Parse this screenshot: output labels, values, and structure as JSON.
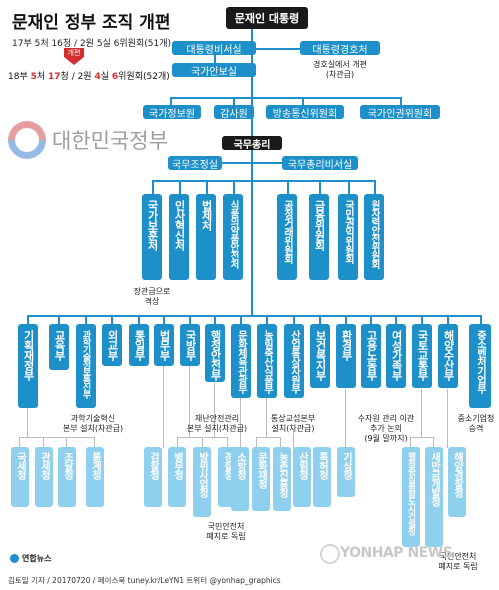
{
  "title": "문재인 정부 조직 개편",
  "before": "17부 5처 16청 / 2원 5실 6위원회(51개)",
  "reform_label": "개편",
  "after": {
    "p1": "18부 ",
    "n1": "5",
    "p2": "처 ",
    "n2": "17",
    "p3": "청 / 2원 ",
    "n3": "4",
    "p4": "실 ",
    "n4": "6",
    "p5": "위원회(52개)"
  },
  "logo_text": "대한민국정부",
  "president": "문재인 대통령",
  "presidential_left": [
    "대통령비서실",
    "국가안보실"
  ],
  "security_service": "대통령경호처",
  "security_note": [
    "경호실에서 개편",
    "(차관급)"
  ],
  "independent": [
    "국가정보원",
    "감사원",
    "방송통신위원회",
    "국가인권위원회"
  ],
  "pm": "국무총리",
  "pm_offices": [
    "국무조정실",
    "국무총리비서실"
  ],
  "pm_agencies": [
    "국가보훈처",
    "인사혁신처",
    "법제처",
    "식품의약품안전처",
    "공정거래위원회",
    "금융위원회",
    "국민권익위원회",
    "원자력안전위원회"
  ],
  "veterans_note": [
    "장관급으로",
    "격상"
  ],
  "ministries": [
    "기획재정부",
    "교육부",
    "과학기술정보통신부",
    "외교부",
    "통일부",
    "법무부",
    "국방부",
    "행정안전부",
    "문화체육관광부",
    "농림축산식품부",
    "산업통상자원부",
    "보건복지부",
    "환경부",
    "고용노동부",
    "여성가족부",
    "국토교통부",
    "해양수산부",
    "중소벤처기업부"
  ],
  "notes": {
    "science": [
      "과학기술혁신",
      "본부 설치(차관급)"
    ],
    "safety": [
      "재난안전관리",
      "본부 설치(차관급)"
    ],
    "trade": [
      "통상교섭본부",
      "설치(차관급)"
    ],
    "water": [
      "수자원 관리 이관",
      "추가 논의",
      "(9월 말까지)"
    ],
    "sme": [
      "중소기업청",
      "승격"
    ],
    "separate": [
      "국민안전처",
      "폐지로 독립"
    ]
  },
  "agencies": [
    "국세청",
    "관세청",
    "조달청",
    "통계청",
    "검찰청",
    "병무청",
    "방위사업청",
    "경찰청",
    "소방청",
    "문화재청",
    "농촌진흥청",
    "산림청",
    "특허청",
    "기상청",
    "행정중심복합도시건설청",
    "새만금개발청",
    "해양경찰청"
  ],
  "credit": "김토일 기자 / 20170720 / 페이스북 tuney.kr/LeYN1 트위터 @yonhap_graphics",
  "agency_logo": "연합뉴스",
  "watermark": "YONHAP NEWS"
}
